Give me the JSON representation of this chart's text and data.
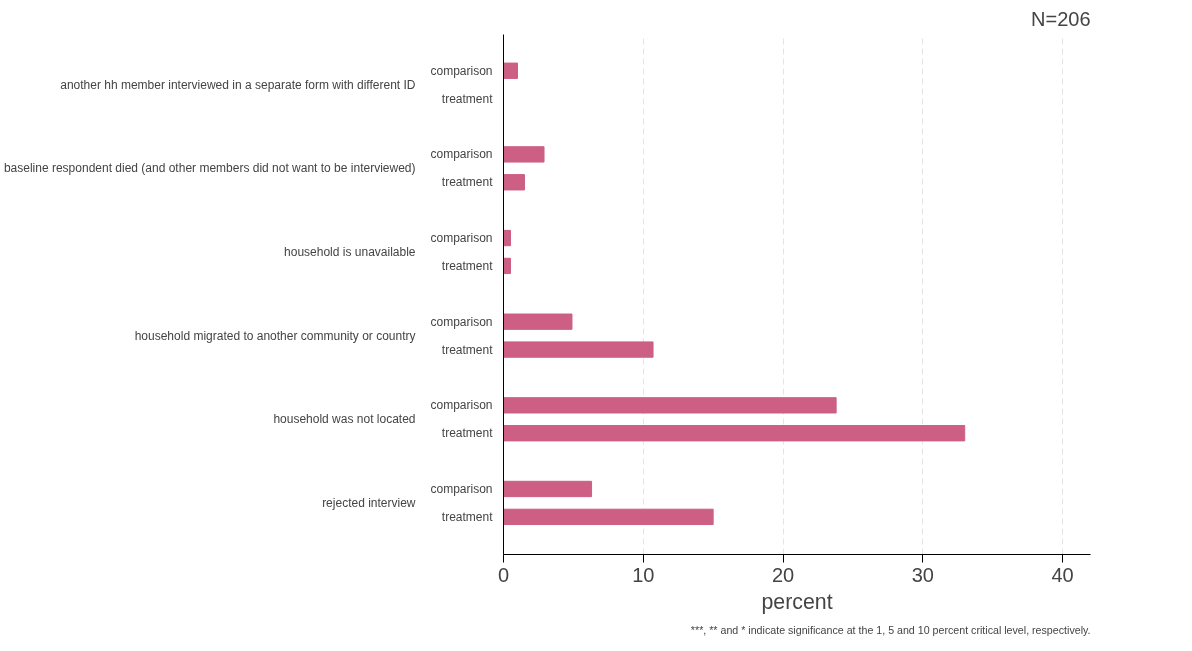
{
  "chart_data": {
    "type": "bar",
    "orientation": "horizontal",
    "xlabel": "percent",
    "categories": [
      "another hh member interviewed in a separate form with different ID",
      "baseline respondent died (and other members did not want to be interviewed)",
      "household is unavailable",
      "household migrated to another community or country",
      "household was not located",
      "rejected interview"
    ],
    "series": [
      {
        "name": "comparison",
        "color": "#cc5f83",
        "values": [
          1.0,
          2.9,
          0.5,
          4.9,
          23.8,
          6.3
        ]
      },
      {
        "name": "treatment",
        "color": "#cc5f83",
        "values": [
          0,
          1.5,
          0.5,
          10.7,
          33.0,
          15.0
        ]
      }
    ],
    "xlim": [
      0,
      42
    ],
    "xticks": [
      0,
      10,
      20,
      30,
      40
    ],
    "grid": "x",
    "annotations": [
      "N=206",
      "***, ** and * indicate significance at the 1, 5 and 10 percent critical level, respectively."
    ]
  }
}
